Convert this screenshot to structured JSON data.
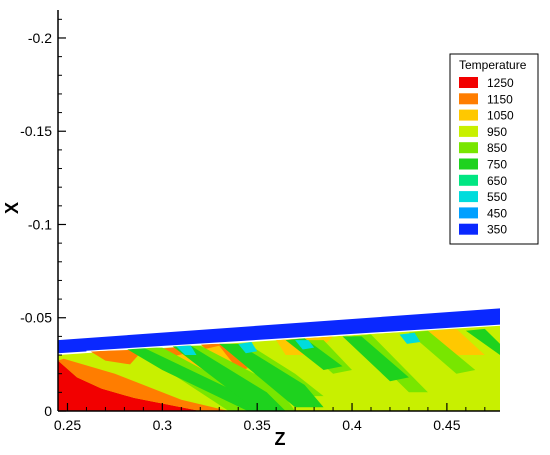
{
  "chart_data": {
    "type": "heatmap",
    "xlabel": "Z",
    "ylabel": "X",
    "xlim": [
      0.245,
      0.478
    ],
    "ylim": [
      0,
      -0.215
    ],
    "x_ticks": [
      0.25,
      0.3,
      0.35,
      0.4,
      0.45
    ],
    "x_tick_labels": [
      "0.25",
      "0.3",
      "0.35",
      "0.4",
      "0.45"
    ],
    "y_ticks": [
      0,
      -0.05,
      -0.1,
      -0.15,
      -0.2
    ],
    "y_tick_labels": [
      "0",
      "-0.05",
      "-0.1",
      "-0.15",
      "-0.2"
    ],
    "legend": {
      "title": "Temperature",
      "placement": "right",
      "levels": [
        {
          "label": "1250",
          "color": "#f20000"
        },
        {
          "label": "1150",
          "color": "#ff7d00"
        },
        {
          "label": "1050",
          "color": "#ffc800"
        },
        {
          "label": "950",
          "color": "#c8f000"
        },
        {
          "label": "850",
          "color": "#78e600"
        },
        {
          "label": "750",
          "color": "#1ed21e"
        },
        {
          "label": "650",
          "color": "#00e682"
        },
        {
          "label": "550",
          "color": "#00dcdc"
        },
        {
          "label": "450",
          "color": "#00a0ff"
        },
        {
          "label": "350",
          "color": "#0a28ff"
        }
      ]
    },
    "regions": [
      {
        "level": "950",
        "points": [
          [
            0.245,
            0
          ],
          [
            0.245,
            -0.03
          ],
          [
            0.478,
            -0.046
          ],
          [
            0.478,
            0
          ]
        ]
      },
      {
        "level": "1250",
        "points": [
          [
            0.245,
            -0.027
          ],
          [
            0.255,
            -0.018
          ],
          [
            0.268,
            -0.012
          ],
          [
            0.285,
            -0.007
          ],
          [
            0.3,
            -0.004
          ],
          [
            0.32,
            0
          ],
          [
            0.245,
            0
          ]
        ]
      },
      {
        "level": "1150",
        "points": [
          [
            0.248,
            -0.028
          ],
          [
            0.275,
            -0.02
          ],
          [
            0.31,
            -0.006
          ],
          [
            0.335,
            0
          ],
          [
            0.32,
            0
          ],
          [
            0.3,
            -0.004
          ],
          [
            0.285,
            -0.007
          ],
          [
            0.268,
            -0.012
          ],
          [
            0.255,
            -0.018
          ],
          [
            0.245,
            -0.027
          ]
        ]
      },
      {
        "level": "1150",
        "points": [
          [
            0.262,
            -0.032
          ],
          [
            0.29,
            -0.033
          ],
          [
            0.283,
            -0.025
          ],
          [
            0.27,
            -0.027
          ]
        ]
      },
      {
        "level": "1150",
        "points": [
          [
            0.295,
            -0.033
          ],
          [
            0.315,
            -0.035
          ],
          [
            0.31,
            -0.028
          ],
          [
            0.298,
            -0.028
          ]
        ]
      },
      {
        "level": "1150",
        "points": [
          [
            0.32,
            -0.036
          ],
          [
            0.335,
            -0.036
          ],
          [
            0.345,
            -0.023
          ],
          [
            0.338,
            -0.02
          ],
          [
            0.328,
            -0.028
          ]
        ]
      },
      {
        "level": "1050",
        "points": [
          [
            0.3,
            -0.028
          ],
          [
            0.33,
            -0.035
          ],
          [
            0.34,
            -0.022
          ],
          [
            0.315,
            -0.02
          ]
        ]
      },
      {
        "level": "1050",
        "points": [
          [
            0.36,
            -0.038
          ],
          [
            0.39,
            -0.04
          ],
          [
            0.38,
            -0.03
          ],
          [
            0.365,
            -0.03
          ]
        ]
      },
      {
        "level": "1050",
        "points": [
          [
            0.43,
            -0.042
          ],
          [
            0.455,
            -0.044
          ],
          [
            0.47,
            -0.03
          ],
          [
            0.45,
            -0.03
          ]
        ]
      },
      {
        "level": "850",
        "points": [
          [
            0.29,
            -0.034
          ],
          [
            0.3,
            -0.034
          ],
          [
            0.34,
            -0.012
          ],
          [
            0.35,
            0
          ],
          [
            0.335,
            0
          ],
          [
            0.305,
            -0.02
          ]
        ]
      },
      {
        "level": "850",
        "points": [
          [
            0.31,
            -0.035
          ],
          [
            0.32,
            -0.035
          ],
          [
            0.36,
            -0.014
          ],
          [
            0.37,
            0
          ],
          [
            0.355,
            0
          ]
        ]
      },
      {
        "level": "850",
        "points": [
          [
            0.335,
            -0.036
          ],
          [
            0.345,
            -0.036
          ],
          [
            0.37,
            -0.02
          ],
          [
            0.385,
            -0.008
          ],
          [
            0.375,
            -0.008
          ],
          [
            0.36,
            -0.018
          ]
        ]
      },
      {
        "level": "850",
        "points": [
          [
            0.37,
            -0.038
          ],
          [
            0.385,
            -0.038
          ],
          [
            0.4,
            -0.022
          ],
          [
            0.39,
            -0.02
          ]
        ]
      },
      {
        "level": "850",
        "points": [
          [
            0.4,
            -0.04
          ],
          [
            0.41,
            -0.041
          ],
          [
            0.44,
            -0.01
          ],
          [
            0.43,
            -0.01
          ]
        ]
      },
      {
        "level": "850",
        "points": [
          [
            0.43,
            -0.042
          ],
          [
            0.44,
            -0.043
          ],
          [
            0.465,
            -0.022
          ],
          [
            0.455,
            -0.02
          ]
        ]
      },
      {
        "level": "750",
        "points": [
          [
            0.28,
            -0.034
          ],
          [
            0.29,
            -0.034
          ],
          [
            0.36,
            0
          ],
          [
            0.345,
            0
          ],
          [
            0.3,
            -0.022
          ]
        ]
      },
      {
        "level": "750",
        "points": [
          [
            0.305,
            -0.035
          ],
          [
            0.315,
            -0.035
          ],
          [
            0.355,
            -0.01
          ],
          [
            0.365,
            0
          ],
          [
            0.35,
            0
          ]
        ]
      },
      {
        "level": "750",
        "points": [
          [
            0.33,
            -0.036
          ],
          [
            0.34,
            -0.036
          ],
          [
            0.375,
            -0.014
          ],
          [
            0.385,
            -0.002
          ],
          [
            0.37,
            -0.002
          ]
        ]
      },
      {
        "level": "750",
        "points": [
          [
            0.365,
            -0.038
          ],
          [
            0.375,
            -0.039
          ],
          [
            0.395,
            -0.024
          ],
          [
            0.385,
            -0.022
          ]
        ]
      },
      {
        "level": "750",
        "points": [
          [
            0.395,
            -0.04
          ],
          [
            0.405,
            -0.04
          ],
          [
            0.43,
            -0.018
          ],
          [
            0.42,
            -0.016
          ]
        ]
      },
      {
        "level": "750",
        "points": [
          [
            0.46,
            -0.043
          ],
          [
            0.47,
            -0.044
          ],
          [
            0.478,
            -0.036
          ],
          [
            0.478,
            -0.03
          ]
        ]
      },
      {
        "level": "550",
        "points": [
          [
            0.307,
            -0.035
          ],
          [
            0.315,
            -0.035
          ],
          [
            0.318,
            -0.03
          ],
          [
            0.312,
            -0.03
          ]
        ]
      },
      {
        "level": "550",
        "points": [
          [
            0.34,
            -0.036
          ],
          [
            0.347,
            -0.037
          ],
          [
            0.35,
            -0.032
          ],
          [
            0.344,
            -0.031
          ]
        ]
      },
      {
        "level": "550",
        "points": [
          [
            0.37,
            -0.038
          ],
          [
            0.377,
            -0.038
          ],
          [
            0.38,
            -0.034
          ],
          [
            0.374,
            -0.033
          ]
        ]
      },
      {
        "level": "550",
        "points": [
          [
            0.425,
            -0.041
          ],
          [
            0.433,
            -0.042
          ],
          [
            0.436,
            -0.037
          ],
          [
            0.429,
            -0.036
          ]
        ]
      },
      {
        "level": "350",
        "points": [
          [
            0.245,
            -0.031
          ],
          [
            0.478,
            -0.046
          ],
          [
            0.478,
            -0.055
          ],
          [
            0.245,
            -0.038
          ]
        ]
      }
    ]
  }
}
